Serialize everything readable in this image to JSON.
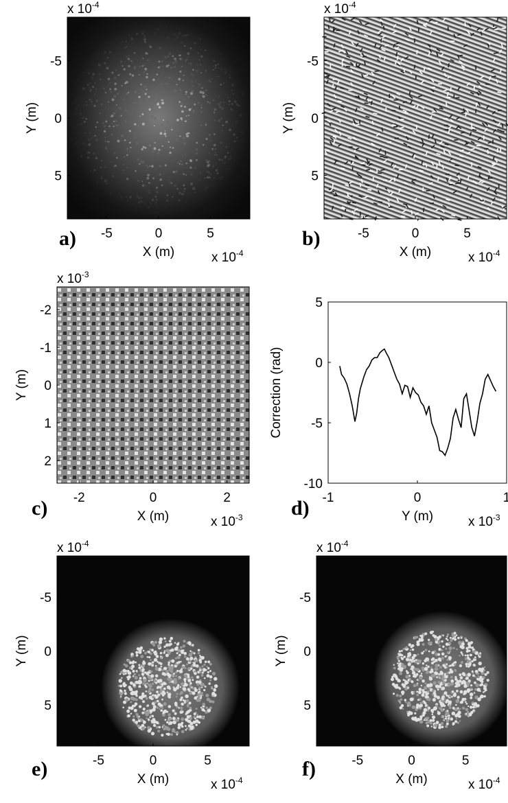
{
  "chart_data": [
    {
      "panel": "a)",
      "type": "heatmap",
      "description_hidden": false,
      "xlabel": "X (m)",
      "ylabel": "Y (m)",
      "xticks": [
        "-5",
        "0",
        "5"
      ],
      "yticks": [
        "-5",
        "0",
        "5"
      ],
      "x_scale": "x 10",
      "x_scale_exp": "-4",
      "y_scale": "x 10",
      "y_scale_exp": "-4",
      "xlim": [
        -0.00088,
        0.00088
      ],
      "ylim": [
        -0.00088,
        0.00088
      ],
      "colormap": "gray",
      "pattern": "speckle intensity, bright center fading toward edges"
    },
    {
      "panel": "b)",
      "type": "heatmap",
      "xlabel": "X (m)",
      "ylabel": "Y (m)",
      "xticks": [
        "-5",
        "0",
        "5"
      ],
      "yticks": [
        "-5",
        "0",
        "5"
      ],
      "x_scale": "x 10",
      "x_scale_exp": "-4",
      "y_scale": "x 10",
      "y_scale_exp": "-4",
      "xlim": [
        -0.00088,
        0.00088
      ],
      "ylim": [
        -0.00088,
        0.00088
      ],
      "colormap": "gray",
      "pattern": "wrapped phase map with vortices and horizontal fringes near top and bottom"
    },
    {
      "panel": "c)",
      "type": "heatmap",
      "xlabel": "X (m)",
      "ylabel": "Y (m)",
      "xticks": [
        "-2",
        "0",
        "2"
      ],
      "yticks": [
        "-2",
        "-1",
        "0",
        "1",
        "2"
      ],
      "x_scale": "x 10",
      "x_scale_exp": "-3",
      "y_scale": "x 10",
      "y_scale_exp": "-3",
      "xlim": [
        -0.0026,
        0.0026
      ],
      "ylim": [
        -0.0026,
        0.0026
      ],
      "colormap": "gray",
      "pattern": "blocky phase map, mid-gray with bright and dark patches"
    },
    {
      "panel": "d)",
      "type": "line",
      "xlabel": "Y (m)",
      "ylabel": "Correction (rad)",
      "xticks": [
        "-1",
        "0",
        "1"
      ],
      "yticks": [
        "5",
        "0",
        "-5",
        "-10"
      ],
      "x_scale": "x 10",
      "x_scale_exp": "-3",
      "xlim": [
        -1,
        1
      ],
      "ylim": [
        -10,
        5
      ],
      "x_unit_note": "x values in units of 1e-3 m",
      "x": [
        -0.87,
        -0.85,
        -0.82,
        -0.79,
        -0.76,
        -0.73,
        -0.7,
        -0.68,
        -0.66,
        -0.64,
        -0.62,
        -0.6,
        -0.57,
        -0.54,
        -0.51,
        -0.48,
        -0.45,
        -0.42,
        -0.39,
        -0.37,
        -0.35,
        -0.32,
        -0.29,
        -0.26,
        -0.23,
        -0.2,
        -0.17,
        -0.14,
        -0.11,
        -0.08,
        -0.05,
        -0.02,
        0.01,
        0.04,
        0.07,
        0.1,
        0.13,
        0.16,
        0.19,
        0.22,
        0.25,
        0.28,
        0.31,
        0.34,
        0.37,
        0.4,
        0.43,
        0.46,
        0.49,
        0.52,
        0.55,
        0.58,
        0.61,
        0.64,
        0.67,
        0.7,
        0.73,
        0.76,
        0.79,
        0.82,
        0.85,
        0.88
      ],
      "y": [
        -0.3,
        -1.0,
        -1.3,
        -1.8,
        -2.6,
        -3.6,
        -4.9,
        -4.2,
        -3.0,
        -2.2,
        -1.7,
        -1.2,
        -0.6,
        -0.3,
        0.2,
        0.4,
        0.4,
        0.8,
        1.0,
        1.1,
        0.8,
        0.4,
        -0.2,
        -0.8,
        -1.4,
        -1.8,
        -2.6,
        -1.9,
        -2.0,
        -2.9,
        -2.1,
        -2.5,
        -2.7,
        -3.3,
        -3.6,
        -4.3,
        -3.6,
        -5.0,
        -5.6,
        -6.2,
        -7.3,
        -7.4,
        -7.7,
        -7.1,
        -6.3,
        -4.6,
        -3.9,
        -4.7,
        -5.4,
        -3.0,
        -2.6,
        -4.0,
        -5.4,
        -6.1,
        -4.9,
        -3.4,
        -2.6,
        -1.4,
        -1.0,
        -1.5,
        -2.0,
        -2.4
      ]
    },
    {
      "panel": "e)",
      "type": "heatmap",
      "xlabel": "X (m)",
      "ylabel": "Y (m)",
      "xticks": [
        "-5",
        "0",
        "5"
      ],
      "yticks": [
        "-5",
        "0",
        "5"
      ],
      "x_scale": "x 10",
      "x_scale_exp": "-4",
      "y_scale": "x 10",
      "y_scale_exp": "-4",
      "xlim": [
        -0.00088,
        0.00088
      ],
      "ylim": [
        -0.00088,
        0.00088
      ],
      "colormap": "gray",
      "pattern": "disk of bright speckles centered near (1.3e-4, 3.3e-4), radius about 4.5e-4"
    },
    {
      "panel": "f)",
      "type": "heatmap",
      "xlabel": "X (m)",
      "ylabel": "Y (m)",
      "xticks": [
        "-5",
        "0",
        "5"
      ],
      "yticks": [
        "-5",
        "0",
        "5"
      ],
      "x_scale": "x 10",
      "x_scale_exp": "-4",
      "y_scale": "x 10",
      "y_scale_exp": "-4",
      "xlim": [
        -0.00088,
        0.00088
      ],
      "ylim": [
        -0.00088,
        0.00088
      ],
      "colormap": "gray",
      "pattern": "disk of bright speckles centered near (2.6e-4, 2.6e-4), radius about 4.5e-4"
    }
  ]
}
